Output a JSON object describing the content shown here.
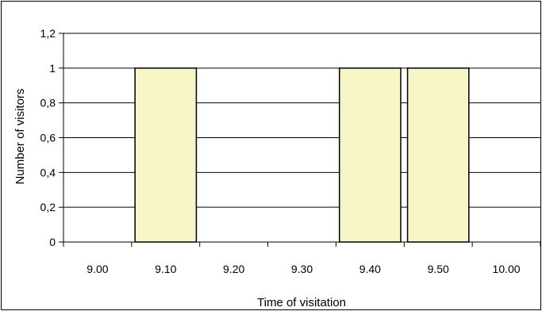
{
  "chart_data": {
    "type": "bar",
    "categories": [
      "9.00",
      "9.10",
      "9.20",
      "9.30",
      "9.40",
      "9.50",
      "10.00"
    ],
    "values": [
      0,
      1,
      0,
      0,
      1,
      1,
      0
    ],
    "title": "",
    "xlabel": "Time of visitation",
    "ylabel": "Number of visitors",
    "ylim": [
      0,
      1.2
    ],
    "yticks": [
      "0",
      "0,2",
      "0,4",
      "0,6",
      "0,8",
      "1",
      "1,2"
    ],
    "grid": true,
    "legend": "none",
    "colors": {
      "bar_fill": "#f8f5c6",
      "bar_stroke": "#000000",
      "grid": "#000000",
      "frame": "#000000"
    }
  }
}
